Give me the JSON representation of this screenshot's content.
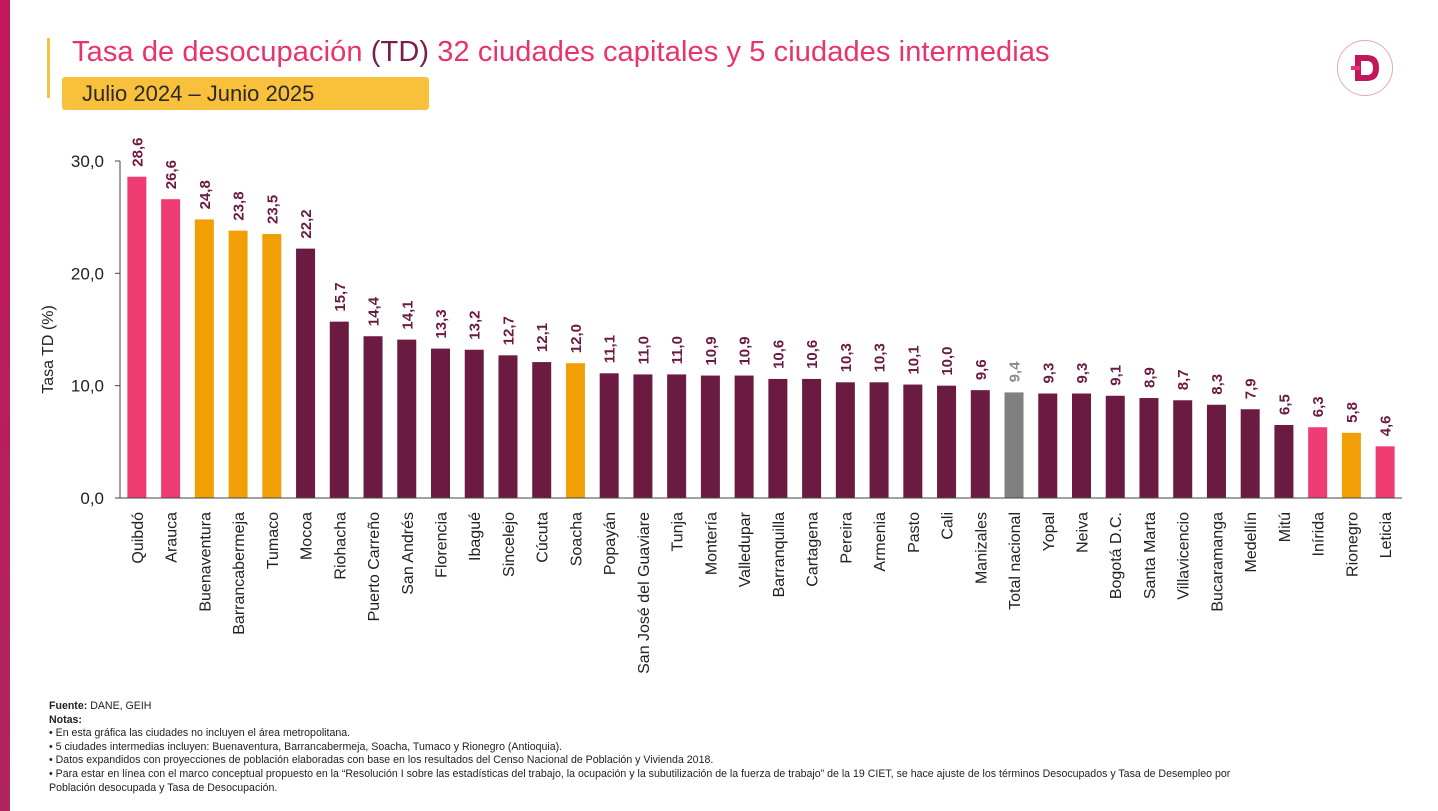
{
  "header": {
    "title_a": "Tasa de desocupación ",
    "title_b": "(TD)",
    "title_c": " 32 ciudades capitales y 5 ciudades intermedias",
    "period": "Julio 2024 – Junio 2025",
    "logo_letter": "D"
  },
  "colors": {
    "capital": "#6b1a42",
    "intermediate": "#f29f05",
    "highlight": "#ef3d74",
    "national": "#808080"
  },
  "chart_data": {
    "type": "bar",
    "ylabel": "Tasa TD (%)",
    "xlabel": "",
    "ylim": [
      0,
      30
    ],
    "yticks": [
      "0,0",
      "10,0",
      "20,0",
      "30,0"
    ],
    "ytick_values": [
      0,
      10,
      20,
      30
    ],
    "grid": false,
    "categories": [
      "Quibdó",
      "Arauca",
      "Buenaventura",
      "Barrancabermeja",
      "Tumaco",
      "Mocoa",
      "Riohacha",
      "Puerto Carreño",
      "San Andrés",
      "Florencia",
      "Ibagué",
      "Sincelejo",
      "Cúcuta",
      "Soacha",
      "Popayán",
      "San José del Guaviare",
      "Tunja",
      "Montería",
      "Valledupar",
      "Barranquilla",
      "Cartagena",
      "Pereira",
      "Armenia",
      "Pasto",
      "Cali",
      "Manizales",
      "Total nacional",
      "Yopal",
      "Neiva",
      "Bogotá D.C.",
      "Santa Marta",
      "Villavicencio",
      "Bucaramanga",
      "Medellín",
      "Mitú",
      "Inírida",
      "Rionegro",
      "Leticia"
    ],
    "values": [
      28.6,
      26.6,
      24.8,
      23.8,
      23.5,
      22.2,
      15.7,
      14.4,
      14.1,
      13.3,
      13.2,
      12.7,
      12.1,
      12.0,
      11.1,
      11.0,
      11.0,
      10.9,
      10.9,
      10.6,
      10.6,
      10.3,
      10.3,
      10.1,
      10.0,
      9.6,
      9.4,
      9.3,
      9.3,
      9.1,
      8.9,
      8.7,
      8.3,
      7.9,
      6.5,
      6.3,
      5.8,
      4.6
    ],
    "data_labels": [
      "28,6",
      "26,6",
      "24,8",
      "23,8",
      "23,5",
      "22,2",
      "15,7",
      "14,4",
      "14,1",
      "13,3",
      "13,2",
      "12,7",
      "12,1",
      "12,0",
      "11,1",
      "11,0",
      "11,0",
      "10,9",
      "10,9",
      "10,6",
      "10,6",
      "10,3",
      "10,3",
      "10,1",
      "10,0",
      "9,6",
      "9,4",
      "9,3",
      "9,3",
      "9,1",
      "8,9",
      "8,7",
      "8,3",
      "7,9",
      "6,5",
      "6,3",
      "5,8",
      "4,6"
    ],
    "bar_groups": [
      "highlight",
      "highlight",
      "intermediate",
      "intermediate",
      "intermediate",
      "capital",
      "capital",
      "capital",
      "capital",
      "capital",
      "capital",
      "capital",
      "capital",
      "intermediate",
      "capital",
      "capital",
      "capital",
      "capital",
      "capital",
      "capital",
      "capital",
      "capital",
      "capital",
      "capital",
      "capital",
      "capital",
      "national",
      "capital",
      "capital",
      "capital",
      "capital",
      "capital",
      "capital",
      "capital",
      "capital",
      "highlight",
      "intermediate",
      "highlight"
    ]
  },
  "notes": {
    "source_label": "Fuente:",
    "source_text": " DANE, GEIH",
    "notes_label": "Notas:",
    "items": [
      "• En esta gráfica las ciudades no incluyen el área metropolitana.",
      "• 5 ciudades intermedias incluyen: Buenaventura, Barrancabermeja, Soacha, Tumaco y Rionegro (Antioquia).",
      "• Datos expandidos con proyecciones de población elaboradas con base en los resultados del Censo Nacional de Población y Vivienda 2018.",
      "• Para estar en línea con el marco conceptual propuesto en la “Resolución I sobre las estadísticas del trabajo, la ocupación y la subutilización de la fuerza de trabajo” de la 19 CIET, se hace ajuste de los términos Desocupados y Tasa de Desempleo por",
      "Población desocupada y Tasa de Desocupación."
    ]
  }
}
